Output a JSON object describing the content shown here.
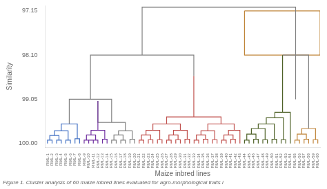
{
  "chart_data": {
    "type": "line",
    "xlabel": "Maize inbred lines",
    "ylabel": "Similarity",
    "subtitle": "Figure 1. Cluster analysis of 60 maize inbred lines evaluated for agro-morphological traits i",
    "grid": false,
    "xlim": [
      -0.5,
      59.5
    ],
    "xticks": [
      {
        "value": 0,
        "label": "RML-1"
      },
      {
        "value": 1,
        "label": "RML-2"
      },
      {
        "value": 2,
        "label": "RML-3"
      },
      {
        "value": 3,
        "label": "RML-4"
      },
      {
        "value": 4,
        "label": "RML-5"
      },
      {
        "value": 5,
        "label": "RML-6"
      },
      {
        "value": 6,
        "label": "RML-7"
      },
      {
        "value": 7,
        "label": "RML-8"
      },
      {
        "value": 8,
        "label": "RML-9"
      },
      {
        "value": 9,
        "label": "RML-10"
      },
      {
        "value": 10,
        "label": "RML-11"
      },
      {
        "value": 11,
        "label": "RML-12"
      },
      {
        "value": 12,
        "label": "RML-13"
      },
      {
        "value": 13,
        "label": "RML-14"
      },
      {
        "value": 14,
        "label": "RML-15"
      },
      {
        "value": 15,
        "label": "RML-16"
      },
      {
        "value": 16,
        "label": "RML-17"
      },
      {
        "value": 17,
        "label": "RML-18"
      },
      {
        "value": 18,
        "label": "RML-19"
      },
      {
        "value": 19,
        "label": "RML-20"
      },
      {
        "value": 20,
        "label": "RML-21"
      },
      {
        "value": 21,
        "label": "RML-22"
      },
      {
        "value": 22,
        "label": "RML-23"
      },
      {
        "value": 23,
        "label": "RML-24"
      },
      {
        "value": 24,
        "label": "RML-25"
      },
      {
        "value": 25,
        "label": "RML-26"
      },
      {
        "value": 26,
        "label": "RML-27"
      },
      {
        "value": 27,
        "label": "RML-28"
      },
      {
        "value": 28,
        "label": "RML-29"
      },
      {
        "value": 29,
        "label": "RML-30"
      },
      {
        "value": 30,
        "label": "RML-31"
      },
      {
        "value": 31,
        "label": "RML-32"
      },
      {
        "value": 32,
        "label": "RML-33"
      },
      {
        "value": 33,
        "label": "RML-34"
      },
      {
        "value": 34,
        "label": "RML-35"
      },
      {
        "value": 35,
        "label": "RML-36"
      },
      {
        "value": 36,
        "label": "RML-37"
      },
      {
        "value": 37,
        "label": "RML-38"
      },
      {
        "value": 38,
        "label": "RML-39"
      },
      {
        "value": 39,
        "label": "RML-40"
      },
      {
        "value": 40,
        "label": "RML-41"
      },
      {
        "value": 41,
        "label": "RML-42"
      },
      {
        "value": 42,
        "label": "RML-43"
      },
      {
        "value": 43,
        "label": "RML-44"
      },
      {
        "value": 44,
        "label": "RML-45"
      },
      {
        "value": 45,
        "label": "RML-46"
      },
      {
        "value": 46,
        "label": "RML-47"
      },
      {
        "value": 47,
        "label": "RML-48"
      },
      {
        "value": 48,
        "label": "RML-49"
      },
      {
        "value": 49,
        "label": "RML-50"
      },
      {
        "value": 50,
        "label": "RML-51"
      },
      {
        "value": 51,
        "label": "RML-52"
      },
      {
        "value": 52,
        "label": "RML-53"
      },
      {
        "value": 53,
        "label": "RML-54"
      },
      {
        "value": 54,
        "label": "RML-55"
      },
      {
        "value": 55,
        "label": "RML-56"
      },
      {
        "value": 56,
        "label": "RML-57"
      },
      {
        "value": 57,
        "label": "RML-58"
      },
      {
        "value": 58,
        "label": "RML-59"
      },
      {
        "value": 59,
        "label": "RML-60"
      }
    ],
    "ylim": [
      100.08,
      97.04
    ],
    "yticks": [
      97.15,
      {
        "value": 98.1,
        "label": "98.10"
      },
      99.05,
      {
        "value": 100,
        "label": "100.00"
      }
    ],
    "series": [
      {
        "color": "#4472c4",
        "x": [
          0,
          0,
          1,
          1,
          null,
          2,
          2,
          3,
          3,
          null,
          0.5,
          0.5,
          2.5,
          2.5,
          null,
          4,
          4,
          5,
          5,
          null,
          1.5,
          1.5,
          4.5,
          4.5,
          null,
          6,
          6,
          7,
          7,
          null,
          3.0,
          3.0,
          6.5,
          6.5
        ],
        "values": [
          100,
          99.93,
          99.93,
          100,
          null,
          100,
          99.93,
          99.93,
          100,
          null,
          99.93,
          99.83,
          99.83,
          99.93,
          null,
          100,
          99.93,
          99.93,
          100,
          null,
          99.83,
          99.73,
          99.73,
          99.93,
          null,
          100,
          99.9,
          99.9,
          100,
          null,
          99.73,
          99.58,
          99.58,
          99.9
        ]
      },
      {
        "color": "#7030a0",
        "x": [
          8,
          8,
          9,
          9,
          null,
          10,
          10,
          11,
          11,
          null,
          8.5,
          8.5,
          10.5,
          10.5,
          null,
          12,
          12,
          13,
          13,
          null,
          9.5,
          9.5,
          12.5,
          12.5,
          null,
          11,
          11,
          null,
          9,
          9,
          10,
          10
        ],
        "values": [
          100,
          99.93,
          99.93,
          100,
          null,
          100,
          99.93,
          99.93,
          100,
          null,
          99.93,
          99.82,
          99.82,
          99.93,
          null,
          100,
          99.91,
          99.91,
          100,
          null,
          99.82,
          99.72,
          99.72,
          99.91,
          null,
          99.72,
          99.09,
          null,
          100,
          99.93,
          99.93,
          100
        ]
      },
      {
        "color": "#808080",
        "x": [
          14,
          14,
          15,
          15,
          null,
          16,
          16,
          17,
          17,
          null,
          14.5,
          14.5,
          16.5,
          16.5,
          null,
          18,
          18,
          19,
          19,
          null,
          15.5,
          15.5,
          18.5,
          18.5,
          null,
          11,
          11,
          17,
          17,
          null,
          4.75,
          4.75,
          14,
          14,
          null,
          9.375,
          9.375,
          null,
          9.375,
          9.375,
          31.9375,
          31.9375,
          null,
          20.65625,
          20.65625,
          null,
          51.31,
          51.31,
          57,
          57,
          null,
          54.155,
          54.155,
          null,
          54.155,
          54.155,
          null,
          20.65625,
          20.65625,
          54.155,
          54.155
        ],
        "values": [
          100,
          99.93,
          99.93,
          100,
          null,
          100,
          99.93,
          99.93,
          100,
          null,
          99.93,
          99.82,
          99.82,
          99.93,
          null,
          100,
          99.91,
          99.91,
          100,
          null,
          99.82,
          99.73,
          99.73,
          99.91,
          null,
          99.09,
          99.55,
          99.55,
          99.73,
          null,
          99.58,
          99.05,
          99.05,
          99.55,
          null,
          99.05,
          98.55,
          null,
          98.55,
          98.1,
          98.1,
          98.55,
          null,
          98.1,
          97.15,
          null,
          98.1,
          98.1,
          98.1,
          99.68,
          null,
          98.1,
          99.05,
          null,
          99.05,
          97.15,
          null,
          97.15,
          97.07,
          97.07,
          97.15
        ]
      },
      {
        "color": "#c0504d",
        "x": [
          20,
          20,
          21,
          21,
          null,
          22,
          22,
          23,
          23,
          null,
          20.5,
          20.5,
          22.5,
          22.5,
          null,
          24,
          24,
          25,
          25,
          null,
          21.5,
          21.5,
          24.5,
          24.5,
          null,
          26,
          26,
          27,
          27,
          null,
          28,
          28,
          29,
          29,
          null,
          26.5,
          26.5,
          28.5,
          28.5,
          null,
          30,
          30,
          31,
          31,
          null,
          27.5,
          27.5,
          30.5,
          30.5,
          null,
          23,
          23,
          29,
          29,
          null,
          32,
          32,
          33,
          33,
          null,
          34,
          34,
          35,
          35,
          null,
          32.5,
          32.5,
          34.5,
          34.5,
          null,
          36,
          36,
          37,
          37,
          null,
          33.5,
          33.5,
          36.5,
          36.5,
          null,
          38,
          38,
          39,
          39,
          null,
          40,
          40,
          41,
          41,
          null,
          38.5,
          38.5,
          40.5,
          40.5,
          null,
          42,
          42,
          null,
          39.5,
          39.5,
          42,
          42,
          null,
          35,
          35,
          40.75,
          40.75,
          null,
          26,
          26,
          37.875,
          37.875,
          null,
          31.9375,
          31.9375
        ],
        "values": [
          100,
          99.93,
          99.93,
          100,
          null,
          100,
          99.92,
          99.92,
          100,
          null,
          99.93,
          99.82,
          99.82,
          99.92,
          null,
          100,
          99.92,
          99.92,
          100,
          null,
          99.82,
          99.72,
          99.72,
          99.92,
          null,
          100,
          99.93,
          99.93,
          100,
          null,
          100,
          99.92,
          99.92,
          100,
          null,
          99.93,
          99.82,
          99.82,
          99.92,
          null,
          100,
          99.91,
          99.91,
          100,
          null,
          99.82,
          99.72,
          99.72,
          99.91,
          null,
          99.72,
          99.58,
          99.58,
          99.72,
          null,
          100,
          99.93,
          99.93,
          100,
          null,
          100,
          99.91,
          99.91,
          100,
          null,
          99.93,
          99.82,
          99.82,
          99.91,
          null,
          100,
          99.92,
          99.92,
          100,
          null,
          99.82,
          99.73,
          99.73,
          99.92,
          null,
          100,
          99.93,
          99.93,
          100,
          null,
          100,
          99.91,
          99.91,
          100,
          null,
          99.93,
          99.82,
          99.82,
          99.91,
          null,
          100,
          99.85,
          null,
          99.82,
          99.72,
          99.72,
          99.85,
          null,
          99.73,
          99.58,
          99.58,
          99.72,
          null,
          99.58,
          99.43,
          99.43,
          99.58,
          null,
          99.43,
          98.55
        ]
      },
      {
        "color": "#4f6228",
        "x": [
          43,
          43,
          44,
          44,
          null,
          45,
          45,
          46,
          46,
          null,
          43.5,
          43.5,
          45.5,
          45.5,
          null,
          47,
          47,
          48,
          48,
          null,
          44.5,
          44.5,
          47.5,
          47.5,
          null,
          49,
          49,
          50,
          50,
          null,
          46,
          46,
          49.5,
          49.5,
          null,
          51,
          51,
          52,
          52,
          null,
          47.75,
          47.75,
          51.5,
          51.5,
          null,
          53,
          53,
          null,
          49.625,
          49.625,
          53,
          53,
          null,
          51.31,
          51.31
        ],
        "values": [
          100,
          99.93,
          99.93,
          100,
          null,
          100,
          99.91,
          99.91,
          100,
          null,
          99.93,
          99.8,
          99.8,
          99.91,
          null,
          100,
          99.92,
          99.92,
          100,
          null,
          99.8,
          99.68,
          99.68,
          99.92,
          null,
          100,
          99.91,
          99.91,
          100,
          null,
          99.68,
          99.58,
          99.58,
          99.91,
          null,
          100,
          99.92,
          99.92,
          100,
          null,
          99.58,
          99.45,
          99.45,
          99.92,
          null,
          100,
          99.85,
          null,
          99.45,
          99.33,
          99.33,
          99.85,
          null,
          99.33,
          98.1
        ]
      },
      {
        "color": "#c0853a",
        "x": [
          54,
          54,
          55,
          55,
          null,
          56,
          56,
          57,
          57,
          null,
          54.5,
          54.5,
          56.5,
          56.5,
          null,
          58,
          58,
          59,
          59,
          null,
          55.5,
          55.5,
          58.5,
          58.5,
          null,
          43,
          59.5,
          59.5,
          43,
          43
        ],
        "values": [
          100,
          99.93,
          99.93,
          100,
          null,
          100,
          99.91,
          99.91,
          100,
          null,
          99.93,
          99.8,
          99.8,
          99.91,
          null,
          100,
          99.92,
          99.92,
          100,
          null,
          99.8,
          99.68,
          99.68,
          99.92,
          null,
          97.15,
          97.15,
          98.1,
          98.1,
          97.15
        ]
      }
    ]
  }
}
